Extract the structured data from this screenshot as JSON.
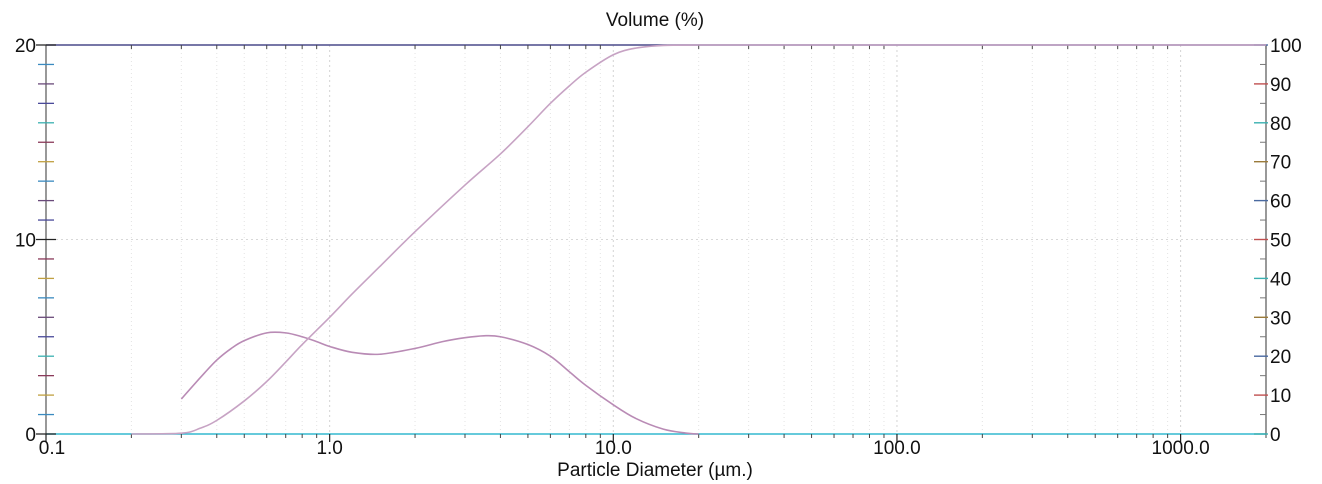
{
  "chart_data": {
    "type": "line",
    "title": "Volume (%)",
    "xlabel": "Particle Diameter (µm.)",
    "x_scale": "log",
    "xlim": [
      0.1,
      2000
    ],
    "ylim_left": [
      0,
      20
    ],
    "ylim_right": [
      0,
      100
    ],
    "x_tick_labels": [
      "0.1",
      "1.0",
      "10.0",
      "100.0",
      "1000.0"
    ],
    "x_ticks": [
      0.1,
      1,
      10,
      100,
      1000
    ],
    "y_left_tick_labels": [
      "0",
      "10",
      "20"
    ],
    "y_left_ticks": [
      0,
      10,
      20
    ],
    "y_right_tick_labels": [
      "0",
      "10",
      "20",
      "30",
      "40",
      "50",
      "60",
      "70",
      "80",
      "90",
      "100"
    ],
    "y_right_ticks": [
      0,
      10,
      20,
      30,
      40,
      50,
      60,
      70,
      80,
      90,
      100
    ],
    "grid": true,
    "series": [
      {
        "axis": "left",
        "color": "#b98bb5",
        "x": [
          0.3,
          0.35,
          0.4,
          0.45,
          0.5,
          0.6,
          0.7,
          0.8,
          0.9,
          1.0,
          1.2,
          1.5,
          2.0,
          2.5,
          3.0,
          3.5,
          4.0,
          5.0,
          6.0,
          7.0,
          8.0,
          10.0,
          12.0,
          15.0,
          18.0,
          20.0
        ],
        "values": [
          1.8,
          2.9,
          3.8,
          4.4,
          4.8,
          5.2,
          5.2,
          5.0,
          4.75,
          4.5,
          4.2,
          4.1,
          4.4,
          4.75,
          4.95,
          5.05,
          5.0,
          4.6,
          4.0,
          3.2,
          2.5,
          1.5,
          0.8,
          0.25,
          0.05,
          0.0
        ]
      },
      {
        "axis": "right",
        "color": "#c7a3c4",
        "x": [
          0.2,
          0.3,
          0.35,
          0.4,
          0.5,
          0.6,
          0.7,
          0.8,
          1.0,
          1.2,
          1.5,
          2.0,
          3.0,
          4.0,
          5.0,
          6.0,
          7.0,
          8.0,
          10.0,
          12.0,
          15.0,
          20.0,
          30.0,
          50.0,
          100.0,
          2000.0
        ],
        "values": [
          0,
          0.2,
          1.5,
          3.5,
          8.5,
          13.5,
          18.5,
          23.0,
          30.0,
          36.0,
          43.0,
          52.0,
          64.0,
          72.0,
          79.0,
          85.0,
          89.5,
          93.0,
          97.5,
          99.2,
          99.9,
          100,
          100,
          100,
          100,
          100
        ]
      }
    ]
  }
}
